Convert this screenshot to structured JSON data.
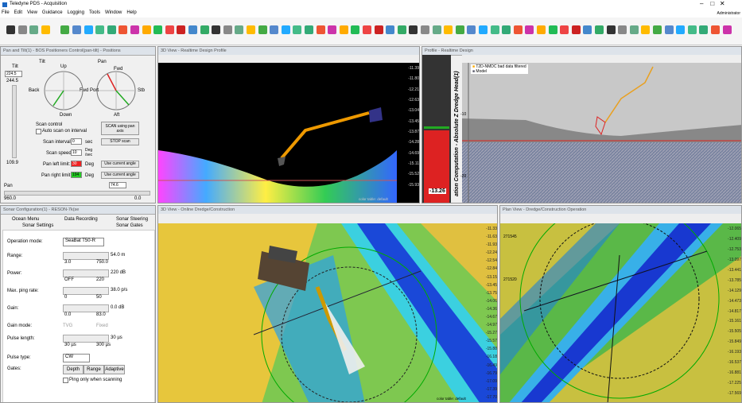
{
  "window": {
    "title": "Teledyne PDS - Acquisition",
    "user": "Administrator",
    "menu": [
      "File",
      "Edit",
      "View",
      "Guidance",
      "Logging",
      "Tools",
      "Window",
      "Help"
    ]
  },
  "pan_tilt": {
    "title": "Pan and Tilt(1) - BOS Positioners Control(pan-tilt) - Positions",
    "tilt_label": "Tilt",
    "tilt_max": "224.5",
    "tilt_cur": "244.5",
    "tilt_min": "109.9",
    "tilt": "Tilt",
    "up": "Up",
    "down": "Down",
    "back": "Back",
    "fwd": "Fwd",
    "pan": "Pan",
    "pan_fwd": "Fwd",
    "port": "Port",
    "stb": "Stb",
    "aft": "Aft",
    "scan_control": "Scan control",
    "auto_scan": "Auto scan on interval",
    "scan_interval": "Scan interval:",
    "scan_interval_value": "0",
    "sec": "sec",
    "scan_speed": "Scan speed:",
    "scan_speed_value": "10",
    "deg_sec": "Deg /sec",
    "pan_left": "Pan left limit:",
    "pan_left_value": "30",
    "pan_right": "Pan right limit:",
    "pan_right_value": "194",
    "deg": "Deg",
    "scan_button": "SCAN using pan axis",
    "stop_button": "STOP scan",
    "use_current_1": "Use current angle",
    "use_current_2": "Use current angle",
    "pan_label": "Pan",
    "pan_value": "74.6",
    "pan_min": "960.0",
    "pan_max": "0.0"
  },
  "view3d_top": {
    "title": "3D View - Realtime Design Profile",
    "scale": [
      "-11.39",
      "-11.80",
      "-12.21",
      "-12.63",
      "-13.04",
      "-13.45",
      "-13.87",
      "-14.28",
      "-14.69",
      "-15.11",
      "-15.52",
      "-15.93"
    ],
    "footer": "color table: default"
  },
  "profile": {
    "title": "Profile - Realtime Design",
    "legend": [
      "T2D-NMDC bad data filtered",
      "Model"
    ],
    "side_label": "ation Computation - Absolute Z Dredge Head(1)",
    "value": "-13.26",
    "axis": [
      "-10",
      "-20"
    ]
  },
  "sonar": {
    "title": "Sonar Configuration(1) - RESON-7k(se",
    "tabs": [
      "Ocean Menu",
      "Data Recording",
      "Sonar Steering",
      "Sonar Settings",
      "Sonar Gates"
    ],
    "operation_mode": "Operation mode:",
    "operation_value": "SeaBat T50-R",
    "range": "Range:",
    "range_value": "54.0 m",
    "range_min": "3.0",
    "range_max": "750.0",
    "power": "Power:",
    "power_value": "220 dB",
    "power_min": "OFF",
    "power_max": "220",
    "ping": "Max. ping rate:",
    "ping_value": "38.0 p/s",
    "ping_min": "0",
    "ping_max": "50",
    "gain": "Gain:",
    "gain_value": "0.0 dB",
    "gain_min": "0.0",
    "gain_max": "83.0",
    "gain_mode": "Gain mode:",
    "tvg": "TVG",
    "fixed": "Fixed",
    "pulse_length": "Pulse length:",
    "pulse_value": "30 µs",
    "pulse_min": "30 µs",
    "pulse_max": "300 µs",
    "pulse_type": "Pulse type:",
    "pulse_type_value": "CW",
    "gates": "Gates:",
    "gate_buttons": [
      "Depth",
      "Range",
      "Adaptive"
    ],
    "ping_only": "Ping only when scanning"
  },
  "view3d_bottom": {
    "title": "3D View - Online Dredge/Construction",
    "scale": [
      "-11.33",
      "-11.63",
      "-11.93",
      "-12.24",
      "-12.54",
      "-12.84",
      "-13.15",
      "-13.45",
      "-13.75",
      "-14.06",
      "-14.36",
      "-14.67",
      "-14.97",
      "-15.27",
      "-15.57",
      "-15.88",
      "-16.18",
      "-16.49",
      "-16.79",
      "-17.09",
      "-17.39",
      "-17.70"
    ],
    "footer": "color table: default"
  },
  "plan": {
    "title": "Plan View - Dredge/Construction Operation",
    "north": [
      "271545",
      "271520"
    ],
    "scale": [
      "-12.065",
      "-12.409",
      "-12.753",
      "-13.097",
      "-13.441",
      "-13.785",
      "-14.129",
      "-14.473",
      "-14.817",
      "-15.161",
      "-15.505",
      "-15.849",
      "-16.193",
      "-16.537",
      "-16.881",
      "-17.225",
      "-17.569"
    ]
  }
}
